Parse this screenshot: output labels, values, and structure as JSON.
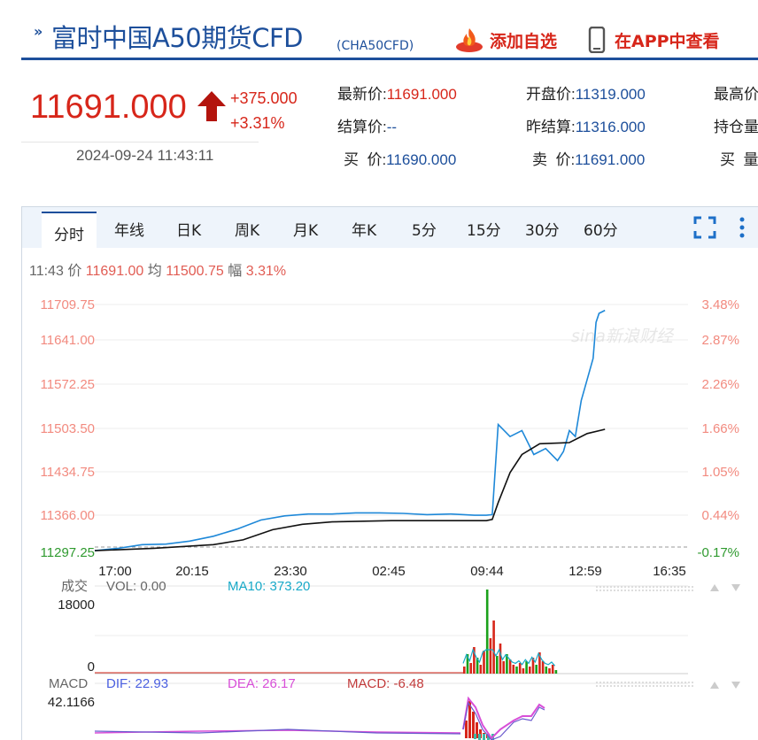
{
  "header": {
    "title": "富时中国A50期货CFD",
    "code": "(CHA50CFD)",
    "add_label": "添加自选",
    "app_label": "在APP中查看"
  },
  "quote": {
    "price": "11691.000",
    "change": "+375.000",
    "change_pct": "+3.31%",
    "datetime": "2024-09-24 11:43:11",
    "direction": "up"
  },
  "stats": [
    {
      "label": "最新价:",
      "value": "11691.000",
      "tone": "red"
    },
    {
      "label": "开盘价:",
      "value": "11319.000",
      "tone": "blue"
    },
    {
      "label": "最高价",
      "value": "",
      "tone": "blue"
    },
    {
      "label": "结算价:",
      "value": "--",
      "tone": "blue"
    },
    {
      "label": "昨结算:",
      "value": "11316.000",
      "tone": "blue"
    },
    {
      "label": "持仓量",
      "value": "",
      "tone": "blue"
    },
    {
      "label": "买  价:",
      "value": "11690.000",
      "tone": "blue"
    },
    {
      "label": "卖  价:",
      "value": "11691.000",
      "tone": "blue"
    },
    {
      "label": "买  量",
      "value": "",
      "tone": "blue"
    }
  ],
  "tabs": [
    "分时",
    "年线",
    "日K",
    "周K",
    "月K",
    "年K",
    "5分",
    "15分",
    "30分",
    "60分"
  ],
  "active_tab": "分时",
  "info": {
    "time": "11:43",
    "price_label": "价",
    "price": "11691.00",
    "avg_label": "均",
    "avg": "11500.75",
    "amp_label": "幅",
    "amp": "3.31%"
  },
  "volume_panel": {
    "label": "成交",
    "vol": "VOL: 0.00",
    "ma10": "MA10: 373.20",
    "ymax": "18000",
    "ymin": "0"
  },
  "macd_panel": {
    "label": "MACD",
    "dif": "DIF: 22.93",
    "dea": "DEA: 26.17",
    "macd": "MACD: -6.48",
    "ymax": "42.1166"
  },
  "watermark": "sina新浪财经",
  "colors": {
    "up": "#d7261a",
    "brand_blue": "#1d4f9b",
    "price_line": "#1e88d8",
    "avg_line": "#111111",
    "vol_up": "#d7261a",
    "vol_down": "#1aa11a",
    "dif": "#6a5acd",
    "dea": "#d84fd8"
  },
  "chart_data": {
    "type": "line",
    "y_ticks": [
      "11709.75",
      "11641.00",
      "11572.25",
      "11503.50",
      "11434.75",
      "11366.00",
      "11297.25"
    ],
    "pct_ticks": [
      "3.48%",
      "2.87%",
      "2.26%",
      "1.66%",
      "1.05%",
      "0.44%",
      "-0.17%"
    ],
    "x_ticks": [
      "17:00",
      "20:15",
      "23:30",
      "02:45",
      "09:44",
      "12:59",
      "16:35"
    ],
    "ylim": [
      11297.25,
      11709.75
    ],
    "series": [
      {
        "key": "price",
        "x": [
          0,
          0.04,
          0.08,
          0.12,
          0.16,
          0.2,
          0.24,
          0.28,
          0.32,
          0.36,
          0.4,
          0.44,
          0.48,
          0.52,
          0.56,
          0.6,
          0.64,
          0.66,
          0.67,
          0.68,
          0.7,
          0.72,
          0.74,
          0.76,
          0.78,
          0.79,
          0.8,
          0.81,
          0.82,
          0.83,
          0.84,
          0.845,
          0.85,
          0.86
        ],
        "values": [
          11300,
          11304,
          11310,
          11311,
          11316,
          11324,
          11336,
          11351,
          11358,
          11361,
          11361,
          11363,
          11363,
          11362,
          11360,
          11361,
          11359,
          11359,
          11360,
          11510,
          11490,
          11500,
          11460,
          11470,
          11450,
          11465,
          11500,
          11490,
          11550,
          11585,
          11620,
          11680,
          11695,
          11700
        ]
      },
      {
        "key": "avg",
        "x": [
          0,
          0.1,
          0.2,
          0.25,
          0.3,
          0.35,
          0.4,
          0.5,
          0.6,
          0.66,
          0.67,
          0.68,
          0.7,
          0.72,
          0.75,
          0.8,
          0.83,
          0.86
        ],
        "values": [
          11300,
          11304,
          11310,
          11318,
          11335,
          11344,
          11348,
          11350,
          11350,
          11350,
          11352,
          11380,
          11430,
          11460,
          11478,
          11480,
          11495,
          11502
        ]
      }
    ]
  }
}
